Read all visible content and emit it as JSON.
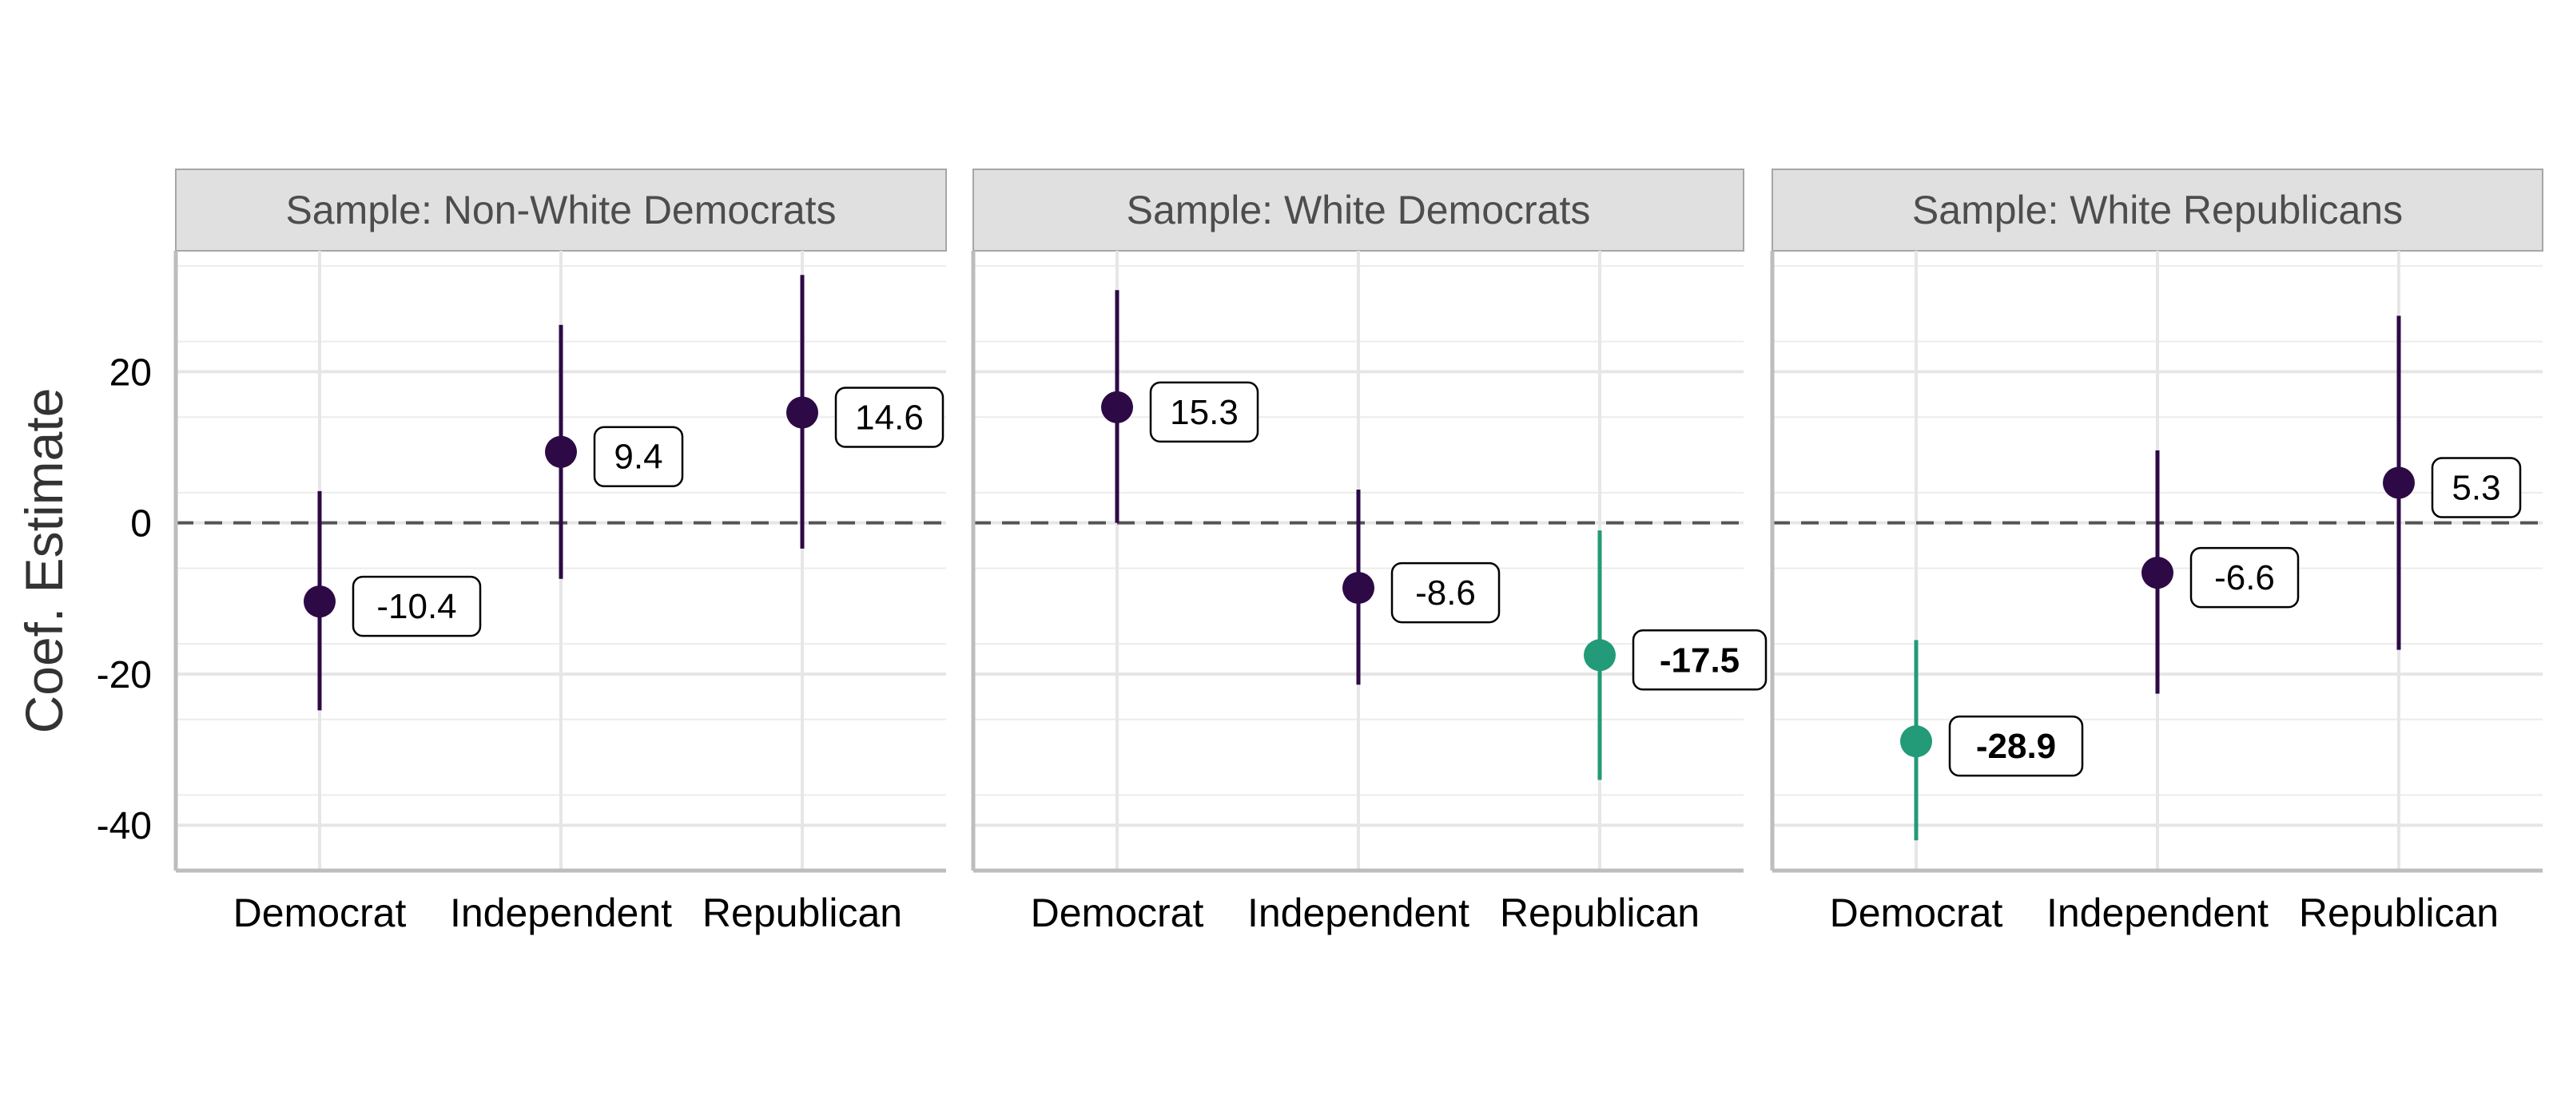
{
  "chart_data": {
    "type": "scatter",
    "ylabel": "Coef. Estimate",
    "xlabel": "",
    "categories": [
      "Democrat",
      "Independent",
      "Republican"
    ],
    "ylim": [
      -46,
      36
    ],
    "y_ticks": [
      -40,
      -20,
      0,
      20
    ],
    "y_tick_labels": [
      "-40",
      "-20",
      "0",
      "20"
    ],
    "reference_line": 0,
    "grid": true,
    "colors": {
      "default": "#2d0a45",
      "significant": "#239a78"
    },
    "panels": [
      {
        "title": "Sample: Non-White Democrats",
        "points": [
          {
            "category": "Democrat",
            "estimate": -10.4,
            "low": -24.8,
            "high": 4.2,
            "label": "-10.4",
            "significant": false
          },
          {
            "category": "Independent",
            "estimate": 9.4,
            "low": -7.4,
            "high": 26.2,
            "label": "9.4",
            "significant": false
          },
          {
            "category": "Republican",
            "estimate": 14.6,
            "low": -3.4,
            "high": 32.8,
            "label": "14.6",
            "significant": false
          }
        ]
      },
      {
        "title": "Sample: White Democrats",
        "points": [
          {
            "category": "Democrat",
            "estimate": 15.3,
            "low": 0.0,
            "high": 30.8,
            "label": "15.3",
            "significant": false
          },
          {
            "category": "Independent",
            "estimate": -8.6,
            "low": -21.4,
            "high": 4.4,
            "label": "-8.6",
            "significant": false
          },
          {
            "category": "Republican",
            "estimate": -17.5,
            "low": -34.0,
            "high": -1.0,
            "label": "-17.5",
            "significant": true
          }
        ]
      },
      {
        "title": "Sample: White Republicans",
        "points": [
          {
            "category": "Democrat",
            "estimate": -28.9,
            "low": -42.0,
            "high": -15.5,
            "label": "-28.9",
            "significant": true
          },
          {
            "category": "Independent",
            "estimate": -6.6,
            "low": -22.6,
            "high": 9.6,
            "label": "-6.6",
            "significant": false
          },
          {
            "category": "Republican",
            "estimate": 5.3,
            "low": -16.8,
            "high": 27.4,
            "label": "5.3",
            "significant": false
          }
        ]
      }
    ]
  }
}
